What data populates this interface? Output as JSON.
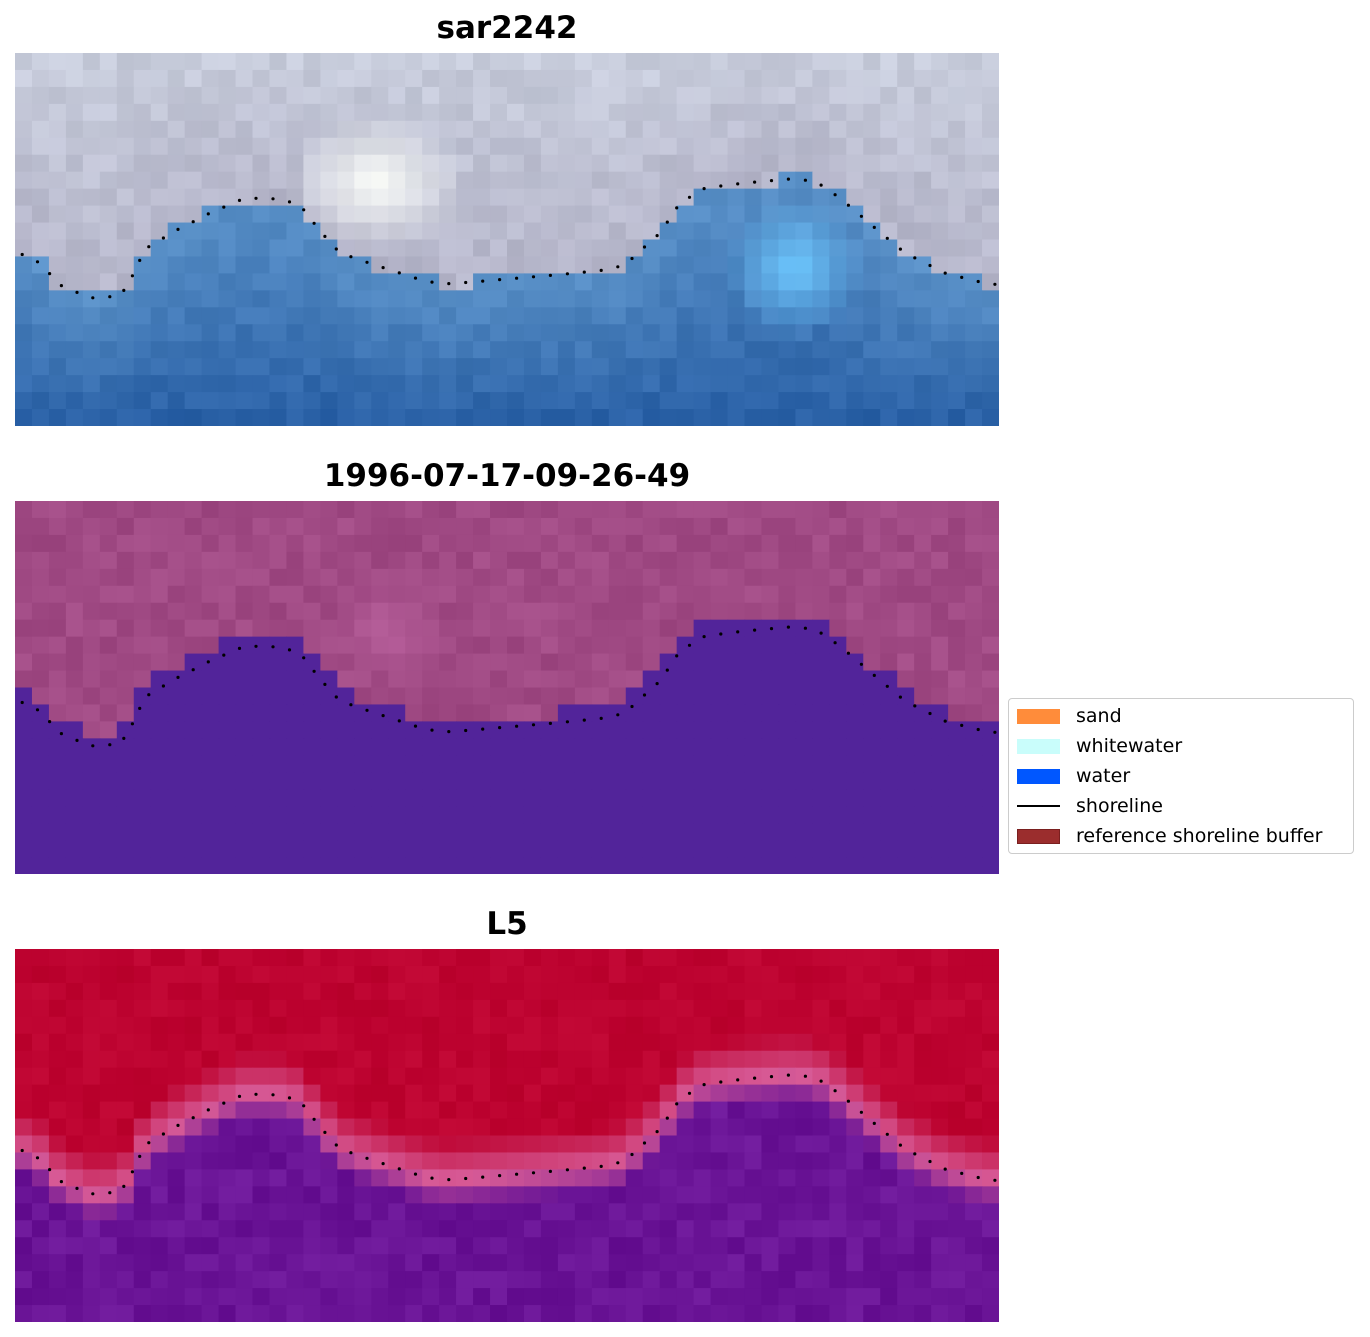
{
  "panels": [
    {
      "title": "sar2242",
      "style": "rgb"
    },
    {
      "title": "1996-07-17-09-26-49",
      "style": "classified"
    },
    {
      "title": "L5",
      "style": "index"
    }
  ],
  "legend": {
    "items": [
      {
        "label": "sand",
        "kind": "patch",
        "color": "#ff8c3a"
      },
      {
        "label": "whitewater",
        "kind": "patch",
        "color": "#c9fdfb"
      },
      {
        "label": "water",
        "kind": "patch",
        "color": "#0057ff"
      },
      {
        "label": "shoreline",
        "kind": "line",
        "color": "#000000"
      },
      {
        "label": "reference shoreline buffer",
        "kind": "patch",
        "color": "#9b2d2d",
        "edge": "#7a1f1f"
      }
    ]
  },
  "colors": {
    "rgb_land": "#a9a6be",
    "rgb_water": "#2f6fae",
    "classified_land": "#a04a84",
    "classified_water": "#52249a",
    "index_land": "#bd0330",
    "index_water": "#6a1496",
    "shoreline_dots": "#000000"
  }
}
